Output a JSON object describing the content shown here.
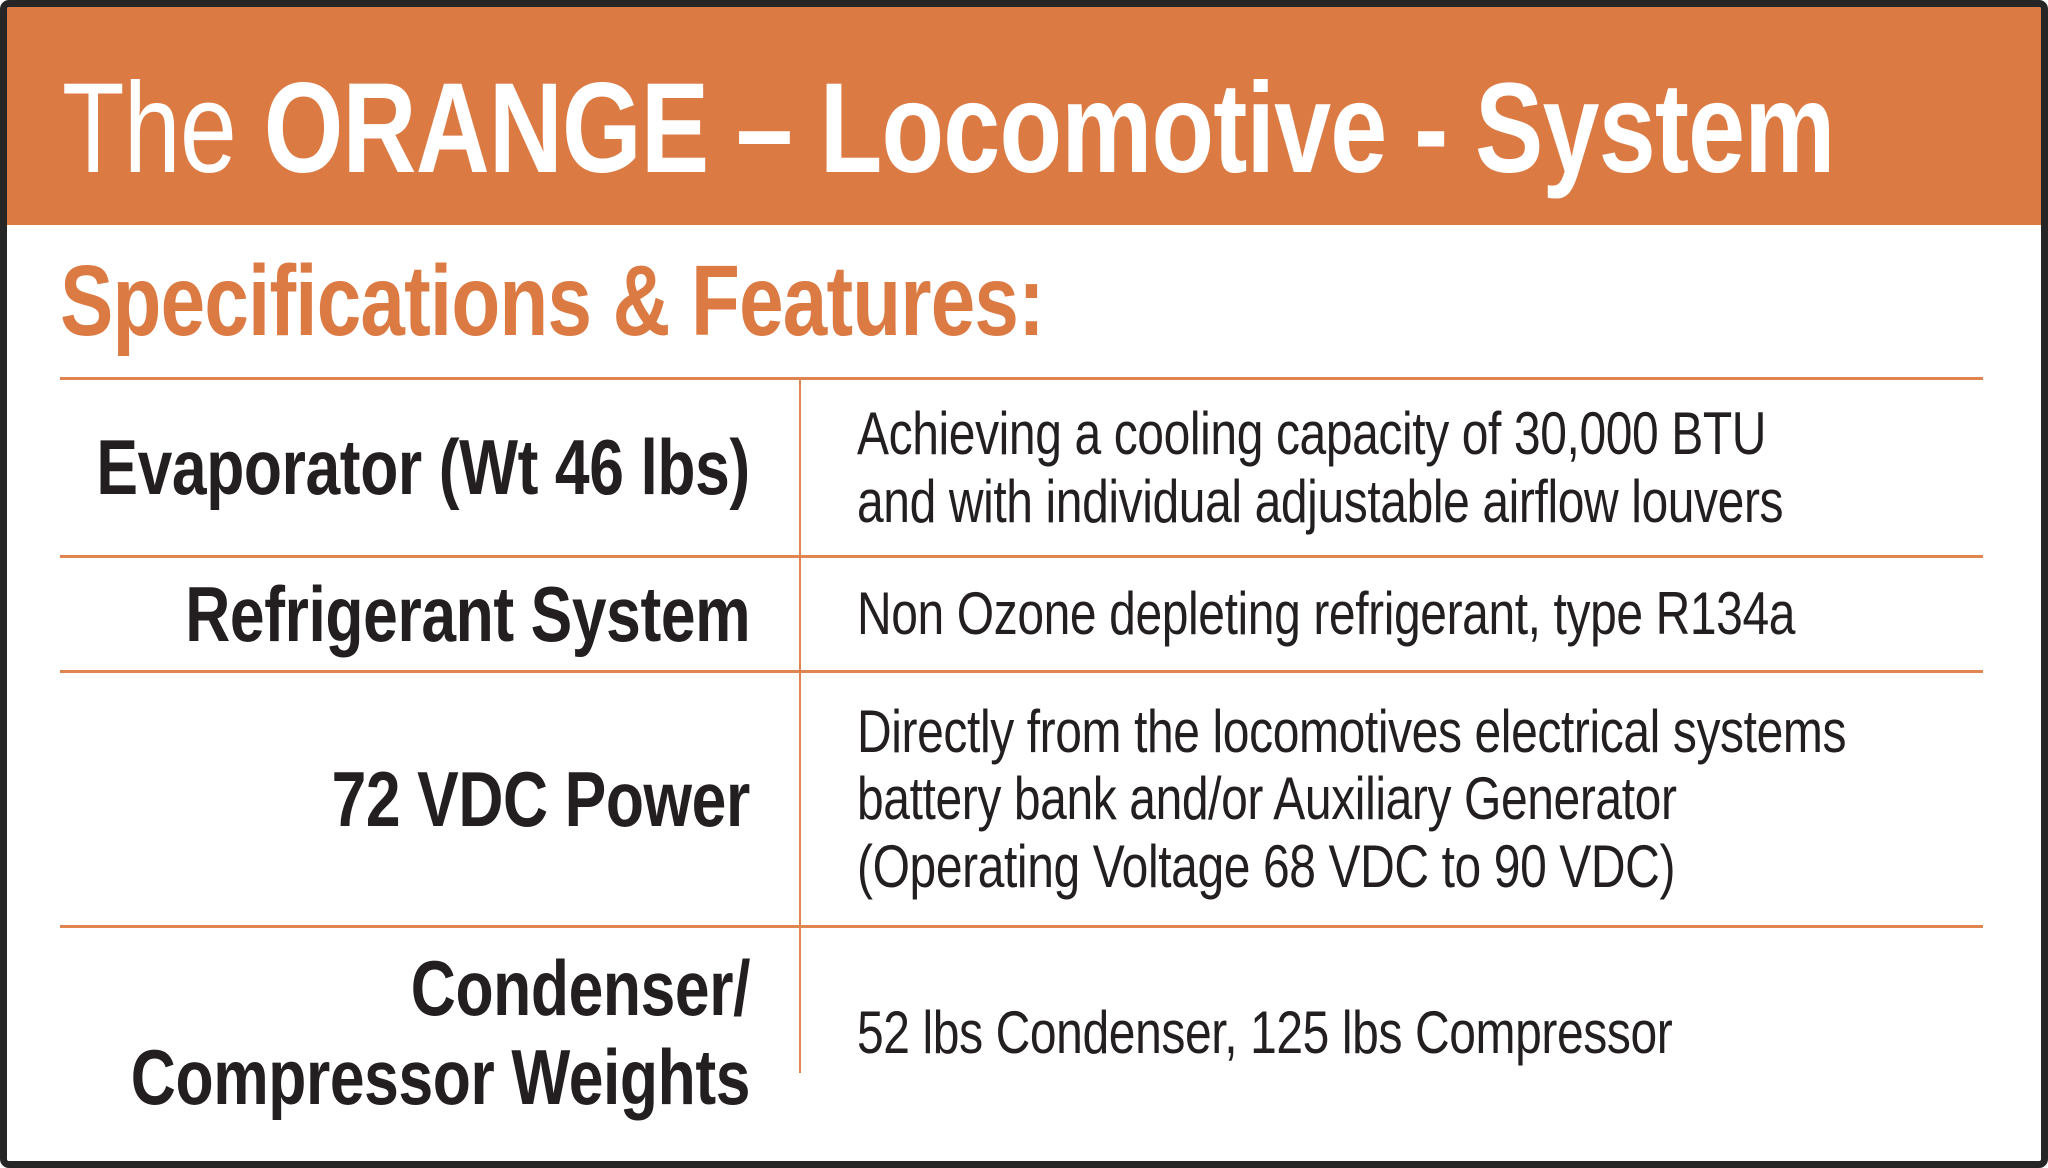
{
  "colors": {
    "accent_orange": "#DC7A44",
    "divider_orange": "#E08450",
    "text_black": "#231F20",
    "border_black": "#262626",
    "header_text_white": "#FFFFFF"
  },
  "header": {
    "title_prefix": "The ",
    "title_main": "ORANGE – Locomotive - System"
  },
  "section": {
    "heading": "Specifications & Features:"
  },
  "table": {
    "rows": [
      {
        "label": "Evaporator (Wt 46 lbs)",
        "value": "Achieving a cooling capacity of 30,000 BTU\nand with individual adjustable airflow louvers"
      },
      {
        "label": "Refrigerant System",
        "value": "Non Ozone depleting refrigerant, type R134a"
      },
      {
        "label": "72 VDC Power",
        "value": "Directly from the locomotives electrical systems\nbattery bank and/or Auxiliary Generator\n(Operating Voltage 68 VDC to 90 VDC)"
      },
      {
        "label": "Condenser/\nCompressor Weights",
        "value": "52 lbs Condenser, 125 lbs Compressor"
      }
    ]
  }
}
